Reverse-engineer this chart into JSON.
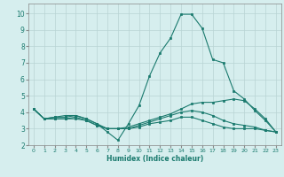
{
  "xlabel": "Humidex (Indice chaleur)",
  "background_color": "#d6eeee",
  "grid_color": "#b8d4d4",
  "line_color": "#1a7a6e",
  "xlim": [
    -0.5,
    23.5
  ],
  "ylim": [
    2.0,
    10.6
  ],
  "xticks": [
    0,
    1,
    2,
    3,
    4,
    5,
    6,
    7,
    8,
    9,
    10,
    11,
    12,
    13,
    14,
    15,
    16,
    17,
    18,
    19,
    20,
    21,
    22,
    23
  ],
  "yticks": [
    2,
    3,
    4,
    5,
    6,
    7,
    8,
    9,
    10
  ],
  "series": [
    [
      4.2,
      3.6,
      3.7,
      3.7,
      3.8,
      3.6,
      3.3,
      2.8,
      2.3,
      3.3,
      4.4,
      6.2,
      7.6,
      8.5,
      9.95,
      9.95,
      9.1,
      7.2,
      7.0,
      5.3,
      4.8,
      4.1,
      3.5,
      2.8
    ],
    [
      4.2,
      3.6,
      3.6,
      3.6,
      3.7,
      3.5,
      3.2,
      3.0,
      3.0,
      3.1,
      3.3,
      3.5,
      3.7,
      3.9,
      4.2,
      4.5,
      4.6,
      4.6,
      4.7,
      4.8,
      4.7,
      4.2,
      3.6,
      2.8
    ],
    [
      4.2,
      3.6,
      3.6,
      3.6,
      3.6,
      3.5,
      3.2,
      3.0,
      3.0,
      3.0,
      3.1,
      3.3,
      3.4,
      3.5,
      3.7,
      3.7,
      3.5,
      3.3,
      3.1,
      3.0,
      3.0,
      3.0,
      2.9,
      2.8
    ],
    [
      4.2,
      3.6,
      3.7,
      3.8,
      3.8,
      3.6,
      3.3,
      3.0,
      3.0,
      3.0,
      3.2,
      3.4,
      3.6,
      3.8,
      4.0,
      4.1,
      4.0,
      3.8,
      3.5,
      3.3,
      3.2,
      3.1,
      2.9,
      2.8
    ]
  ]
}
